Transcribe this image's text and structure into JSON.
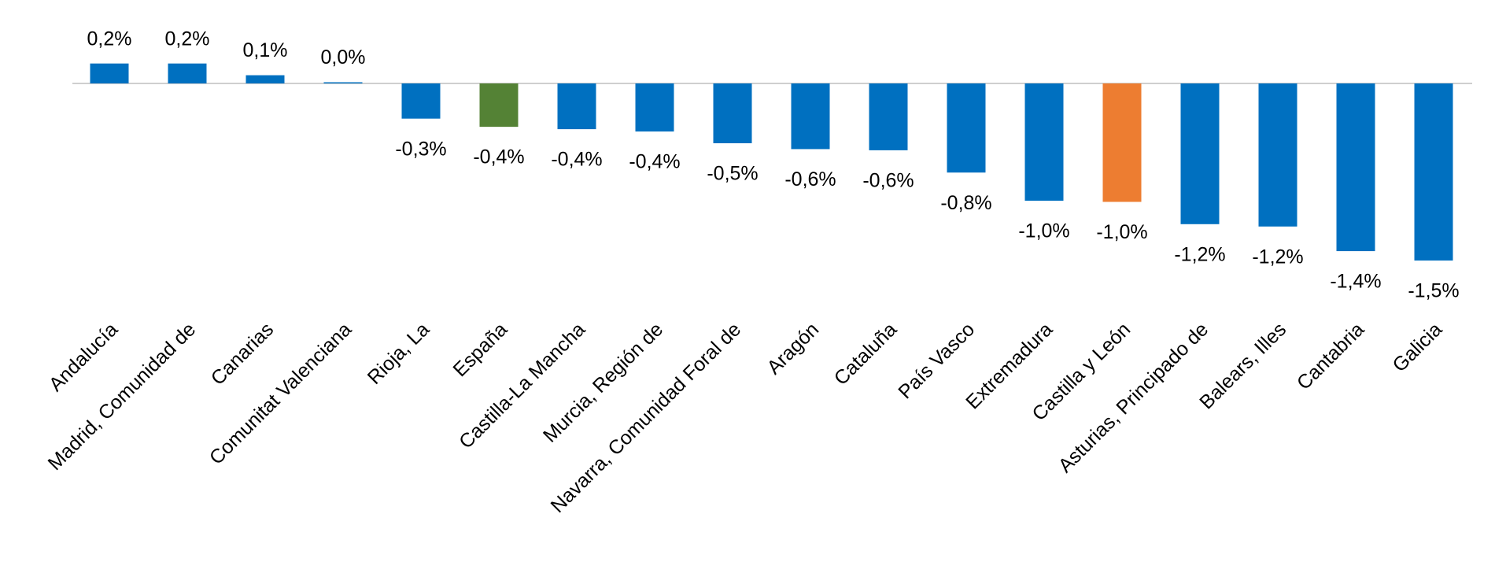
{
  "chart_data": {
    "type": "bar",
    "categories": [
      "Andalucía",
      "Madrid, Comunidad de",
      "Canarias",
      "Comunitat Valenciana",
      "Rioja, La",
      "España",
      "Castilla-La Mancha",
      "Murcia, Región de",
      "Navarra, Comunidad Foral de",
      "Aragón",
      "Cataluña",
      "País Vasco",
      "Extremadura",
      "Castilla y León",
      "Asturias, Principado de",
      "Balears, Illes",
      "Cantabria",
      "Galicia"
    ],
    "values": [
      0.17,
      0.17,
      0.07,
      0.01,
      -0.3,
      -0.37,
      -0.39,
      -0.41,
      -0.51,
      -0.56,
      -0.57,
      -0.76,
      -1.0,
      -1.01,
      -1.2,
      -1.22,
      -1.43,
      -1.51
    ],
    "value_labels": [
      "0,2%",
      "0,2%",
      "0,1%",
      "0,0%",
      "-0,3%",
      "-0,4%",
      "-0,4%",
      "-0,4%",
      "-0,5%",
      "-0,6%",
      "-0,6%",
      "-0,8%",
      "-1,0%",
      "-1,0%",
      "-1,2%",
      "-1,2%",
      "-1,4%",
      "-1,5%"
    ],
    "colors": [
      "#0070c0",
      "#0070c0",
      "#0070c0",
      "#0070c0",
      "#0070c0",
      "#548235",
      "#0070c0",
      "#0070c0",
      "#0070c0",
      "#0070c0",
      "#0070c0",
      "#0070c0",
      "#0070c0",
      "#ed7d31",
      "#0070c0",
      "#0070c0",
      "#0070c0",
      "#0070c0"
    ]
  }
}
